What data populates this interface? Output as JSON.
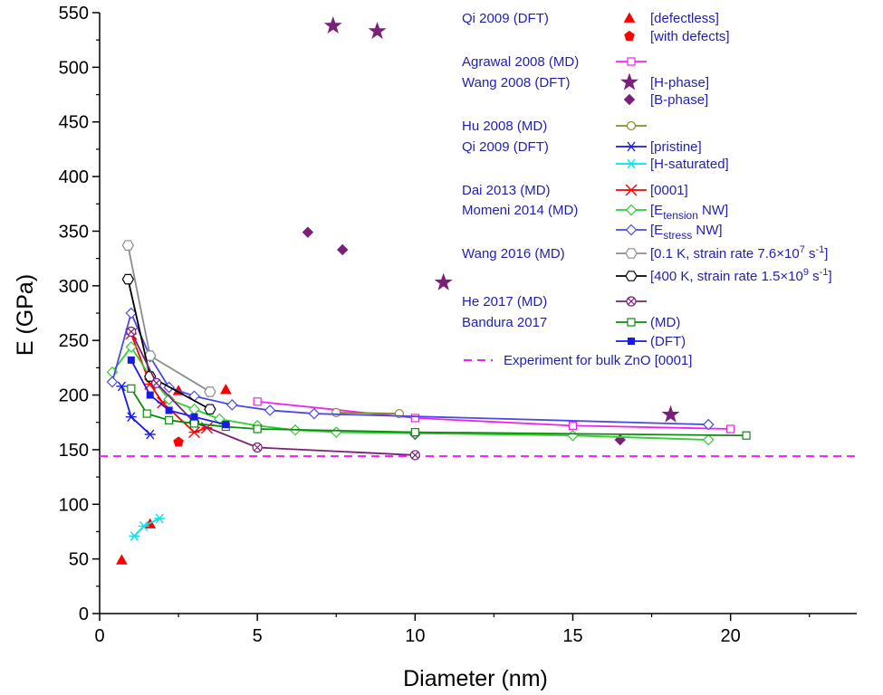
{
  "chart_data": {
    "type": "scatter",
    "xlabel": "Diameter (nm)",
    "ylabel": "E (GPa)",
    "xlim": [
      0,
      24
    ],
    "ylim": [
      0,
      550
    ],
    "x_ticks": [
      0,
      5,
      10,
      15,
      20
    ],
    "y_ticks": [
      0,
      50,
      100,
      150,
      200,
      250,
      300,
      350,
      400,
      450,
      500,
      550
    ],
    "reference_line": {
      "y": 144,
      "label": "Experiment for bulk ZnO [0001]",
      "color": "#ee22ee"
    },
    "series": [
      {
        "group": "Qi 2009 (DFT)",
        "name": "[defectless]",
        "color": "#ff0000",
        "marker": "triangle",
        "line": false,
        "x": [
          0.7,
          1.6,
          2.5,
          4.0
        ],
        "y": [
          49,
          82,
          204,
          205
        ]
      },
      {
        "name": "[with defects]",
        "color": "#ff0000",
        "marker": "pentagon",
        "line": false,
        "x": [
          2.5
        ],
        "y": [
          157
        ]
      },
      {
        "group": "Agrawal 2008 (MD)",
        "name": "",
        "color": "#ee22ee",
        "marker": "square-open",
        "line": true,
        "x": [
          5.0,
          10.0,
          15.0,
          20.0
        ],
        "y": [
          194,
          179,
          172,
          169
        ]
      },
      {
        "group": "Wang 2008 (DFT)",
        "name": "[H-phase]",
        "color": "#7a1f7a",
        "marker": "star",
        "line": false,
        "x": [
          7.4,
          8.8,
          10.9,
          18.1
        ],
        "y": [
          538,
          533,
          303,
          182
        ]
      },
      {
        "name": "[B-phase]",
        "color": "#7a1f7a",
        "marker": "diamond",
        "line": false,
        "x": [
          6.6,
          7.7,
          10.0,
          16.5
        ],
        "y": [
          349,
          333,
          164,
          159
        ]
      },
      {
        "group": "Hu 2008 (MD)",
        "name": "",
        "color": "#8a8a2a",
        "marker": "circle-open",
        "line": true,
        "x": [
          7.5,
          9.5
        ],
        "y": [
          184,
          183
        ]
      },
      {
        "group": "Qi 2009 (DFT)",
        "name": "[pristine]",
        "color": "#1a1ae6",
        "marker": "asterisk",
        "line": true,
        "x": [
          0.7,
          1.0,
          1.6
        ],
        "y": [
          208,
          180,
          164
        ]
      },
      {
        "name": "[H-saturated]",
        "color": "#00e5ee",
        "marker": "asterisk",
        "line": true,
        "x": [
          1.1,
          1.4,
          1.9
        ],
        "y": [
          71,
          80,
          87
        ]
      },
      {
        "group": "Dai 2013 (MD)",
        "name": "[0001]",
        "color": "#ff0000",
        "marker": "asterisk-x",
        "line": true,
        "x": [
          1.0,
          1.6,
          2.0,
          3.0,
          3.4
        ],
        "y": [
          256,
          210,
          193,
          166,
          170
        ]
      },
      {
        "group": "Momeni 2014 (MD)",
        "name": "[E_tension NW]",
        "sub": "tension",
        "color": "#33cc33",
        "marker": "diamond-open",
        "line": true,
        "x": [
          0.4,
          1.0,
          1.6,
          2.2,
          3.0,
          3.8,
          5.0,
          6.2,
          7.5,
          10.0,
          15.0,
          19.3
        ],
        "y": [
          221,
          244,
          217,
          196,
          187,
          178,
          172,
          168,
          166,
          165,
          163,
          159
        ]
      },
      {
        "name": "[E_stress NW]",
        "sub": "stress",
        "color": "#4a4ae6",
        "marker": "diamond-open",
        "line": true,
        "x": [
          0.4,
          1.0,
          1.6,
          2.2,
          3.0,
          4.2,
          5.4,
          6.8,
          19.3
        ],
        "y": [
          212,
          275,
          235,
          207,
          199,
          191,
          186,
          183,
          173
        ]
      },
      {
        "group": "Wang 2016 (MD)",
        "name": "[0.1 K, strain rate 7.6×10",
        "sup": "7",
        "tail": " s",
        "sup2": "-1",
        "end": "]",
        "color": "#8c8c8c",
        "marker": "hex-open",
        "line": true,
        "x": [
          0.9,
          1.6,
          3.5
        ],
        "y": [
          337,
          236,
          203
        ]
      },
      {
        "name": "[400 K, strain rate 1.5×10",
        "sup": "9",
        "tail": " s",
        "sup2": "-1",
        "end": "]",
        "color": "#000000",
        "marker": "hex-open",
        "line": true,
        "x": [
          0.9,
          1.6,
          3.5
        ],
        "y": [
          306,
          217,
          187
        ]
      },
      {
        "group": "He 2017 (MD)",
        "name": "",
        "color": "#7a1f7a",
        "marker": "circle-x",
        "line": true,
        "x": [
          1.0,
          1.8,
          3.0,
          5.0,
          10.0
        ],
        "y": [
          258,
          211,
          175,
          152,
          145
        ]
      },
      {
        "group": "Bandura 2017",
        "name": "(MD)",
        "color": "#118811",
        "marker": "square-open",
        "line": true,
        "x": [
          1.0,
          1.5,
          2.2,
          3.0,
          4.0,
          5.0,
          10.0,
          20.5
        ],
        "y": [
          206,
          183,
          177,
          174,
          171,
          169,
          166,
          163
        ]
      },
      {
        "name": "(DFT)",
        "color": "#1a1ae6",
        "marker": "square",
        "line": true,
        "x": [
          1.0,
          1.6,
          2.2,
          3.0,
          4.0
        ],
        "y": [
          232,
          200,
          186,
          180,
          173
        ]
      }
    ],
    "legend_position": "top-right"
  }
}
